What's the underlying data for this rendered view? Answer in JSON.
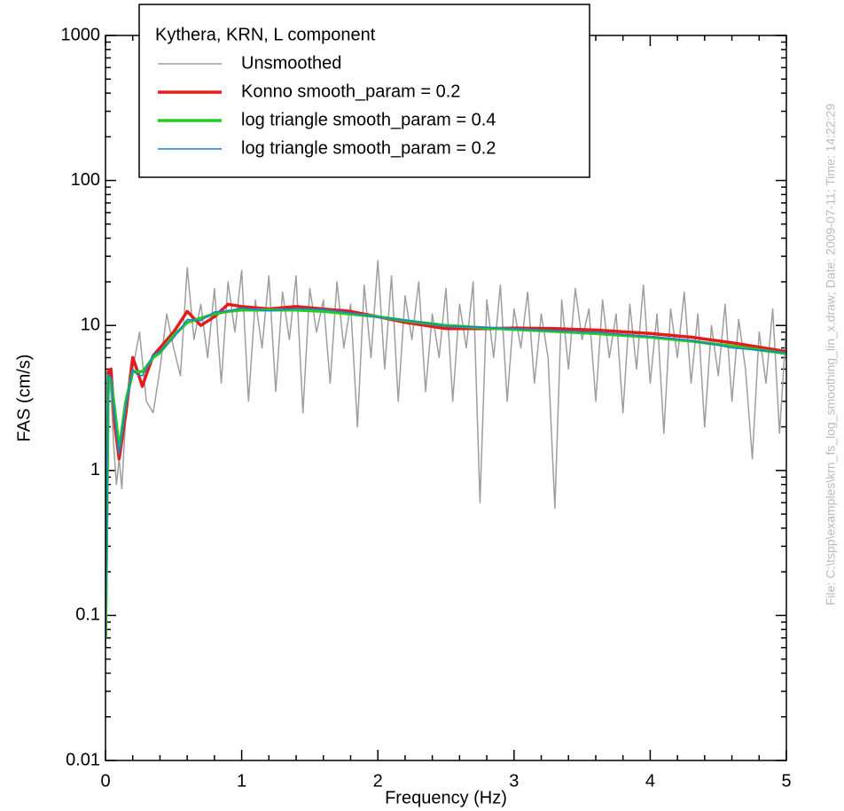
{
  "chart_data": {
    "type": "line",
    "legend_title": "Kythera, KRN, L component",
    "xlabel": "Frequency (Hz)",
    "ylabel": "FAS (cm/s)",
    "side_note": "File: C:\\tspp\\examples\\krn_fs_log_smoothing_lin_x.draw; Date: 2009-07-11; Time: 14:22:29",
    "ylog": true,
    "legend": "upper left",
    "xlim": [
      0,
      5
    ],
    "ylim": [
      0.01,
      1000
    ],
    "xticks": [
      0,
      1,
      2,
      3,
      4,
      5
    ],
    "xminor": [
      0.2,
      0.4,
      0.6,
      0.8,
      1.2,
      1.4,
      1.6,
      1.8,
      2.2,
      2.4,
      2.6,
      2.8,
      3.2,
      3.4,
      3.6,
      3.8,
      4.2,
      4.4,
      4.6,
      4.8
    ],
    "yticks": [
      0.01,
      0.1,
      1,
      10,
      100,
      1000
    ],
    "yminor": [
      0.02,
      0.03,
      0.04,
      0.05,
      0.06,
      0.07,
      0.08,
      0.09,
      0.2,
      0.3,
      0.4,
      0.5,
      0.6,
      0.7,
      0.8,
      0.9,
      2,
      3,
      4,
      5,
      6,
      7,
      8,
      9,
      20,
      30,
      40,
      50,
      60,
      70,
      80,
      90,
      200,
      300,
      400,
      500,
      600,
      700,
      800,
      900
    ],
    "series": [
      {
        "name": "Unsmoothed",
        "color": "#9e9e9e",
        "width": 1.5,
        "x": [
          0,
          0.02,
          0.04,
          0.06,
          0.08,
          0.1,
          0.12,
          0.15,
          0.2,
          0.25,
          0.3,
          0.35,
          0.4,
          0.45,
          0.5,
          0.55,
          0.6,
          0.65,
          0.7,
          0.75,
          0.8,
          0.85,
          0.9,
          0.95,
          1.0,
          1.05,
          1.1,
          1.15,
          1.2,
          1.25,
          1.3,
          1.35,
          1.4,
          1.45,
          1.5,
          1.55,
          1.6,
          1.65,
          1.7,
          1.75,
          1.8,
          1.85,
          1.9,
          1.95,
          2.0,
          2.05,
          2.1,
          2.15,
          2.2,
          2.25,
          2.3,
          2.35,
          2.4,
          2.45,
          2.5,
          2.55,
          2.6,
          2.65,
          2.7,
          2.75,
          2.8,
          2.85,
          2.9,
          2.95,
          3.0,
          3.05,
          3.1,
          3.15,
          3.2,
          3.25,
          3.3,
          3.35,
          3.4,
          3.45,
          3.5,
          3.55,
          3.6,
          3.65,
          3.7,
          3.75,
          3.8,
          3.85,
          3.9,
          3.95,
          4.0,
          4.05,
          4.1,
          4.15,
          4.2,
          4.25,
          4.3,
          4.35,
          4.4,
          4.45,
          4.5,
          4.55,
          4.6,
          4.65,
          4.7,
          4.75,
          4.8,
          4.85,
          4.9,
          4.95,
          5.0
        ],
        "values": [
          0.06,
          4,
          3.5,
          1.5,
          0.8,
          1.2,
          0.75,
          2.5,
          5,
          9,
          3,
          2.5,
          5,
          12,
          7,
          4.5,
          25,
          8,
          14,
          6,
          18,
          4,
          20,
          9,
          24,
          3,
          15,
          7,
          22,
          3.5,
          17,
          8,
          22,
          2.5,
          18,
          9,
          15,
          4,
          20,
          7,
          14,
          2,
          19,
          6,
          28,
          5,
          22,
          3,
          16,
          8,
          20,
          3.5,
          12,
          6,
          18,
          3,
          14,
          7,
          20,
          0.6,
          15,
          6,
          19,
          3,
          13,
          7,
          17,
          4,
          12,
          6,
          0.55,
          15,
          5,
          18,
          8,
          13,
          3,
          15,
          6,
          12,
          2.5,
          14,
          5,
          19,
          4,
          12,
          1.8,
          13,
          6,
          17,
          4,
          12,
          2,
          10,
          4.5,
          14,
          3,
          11,
          5,
          1.2,
          9,
          4,
          13,
          1.8,
          10
        ]
      },
      {
        "name": "Konno smooth_param = 0.2",
        "color": "#e41a1c",
        "width": 3.5,
        "x": [
          0,
          0.02,
          0.04,
          0.07,
          0.1,
          0.15,
          0.2,
          0.23,
          0.27,
          0.3,
          0.35,
          0.4,
          0.5,
          0.6,
          0.7,
          0.8,
          0.9,
          1.0,
          1.2,
          1.4,
          1.6,
          1.8,
          2.0,
          2.2,
          2.5,
          2.8,
          3.0,
          3.3,
          3.6,
          4.0,
          4.3,
          4.6,
          5.0
        ],
        "values": [
          0.07,
          4.8,
          5,
          2,
          1.2,
          2.5,
          6,
          5,
          3.8,
          4.6,
          6.2,
          7,
          9,
          12.5,
          10,
          11.5,
          14,
          13.5,
          13,
          13.5,
          13,
          12.5,
          11.5,
          10.5,
          9.5,
          9.5,
          9.6,
          9.5,
          9.3,
          8.8,
          8.3,
          7.6,
          6.6
        ]
      },
      {
        "name": "log triangle smooth_param = 0.4",
        "color": "#22cc22",
        "width": 3.5,
        "x": [
          0,
          0.02,
          0.04,
          0.07,
          0.1,
          0.15,
          0.2,
          0.23,
          0.27,
          0.3,
          0.35,
          0.4,
          0.5,
          0.6,
          0.7,
          0.8,
          0.9,
          1.0,
          1.2,
          1.4,
          1.6,
          1.8,
          2.0,
          2.2,
          2.5,
          2.8,
          3.0,
          3.3,
          3.6,
          4.0,
          4.3,
          4.6,
          5.0
        ],
        "values": [
          0.07,
          4.5,
          4.2,
          2.5,
          1.4,
          3,
          4.8,
          4.8,
          4.8,
          5.2,
          6,
          6.5,
          8.5,
          10.5,
          11.2,
          12,
          12.5,
          12.8,
          12.8,
          12.8,
          12.5,
          12,
          11.5,
          10.8,
          10,
          9.6,
          9.4,
          9.1,
          8.8,
          8.3,
          7.8,
          7.2,
          6.4
        ]
      },
      {
        "name": "log triangle smooth_param = 0.2",
        "color": "#1f7fd6",
        "width": 1.5,
        "x": [
          0,
          0.02,
          0.04,
          0.07,
          0.1,
          0.15,
          0.2,
          0.23,
          0.27,
          0.3,
          0.35,
          0.4,
          0.5,
          0.6,
          0.7,
          0.8,
          0.9,
          1.0,
          1.2,
          1.4,
          1.6,
          1.8,
          2.0,
          2.2,
          2.5,
          2.8,
          3.0,
          3.3,
          3.6,
          4.0,
          4.3,
          4.6,
          5.0
        ],
        "values": [
          0.06,
          4.6,
          4.4,
          2.2,
          1.3,
          2.8,
          5,
          4.6,
          4.5,
          5,
          6.3,
          6.6,
          8.2,
          11,
          10.8,
          12.4,
          12.6,
          13.2,
          12.6,
          13.1,
          12.9,
          12.2,
          11.4,
          10.9,
          9.9,
          9.7,
          9.5,
          9.2,
          9,
          8.4,
          7.9,
          7,
          6.5
        ]
      }
    ]
  }
}
